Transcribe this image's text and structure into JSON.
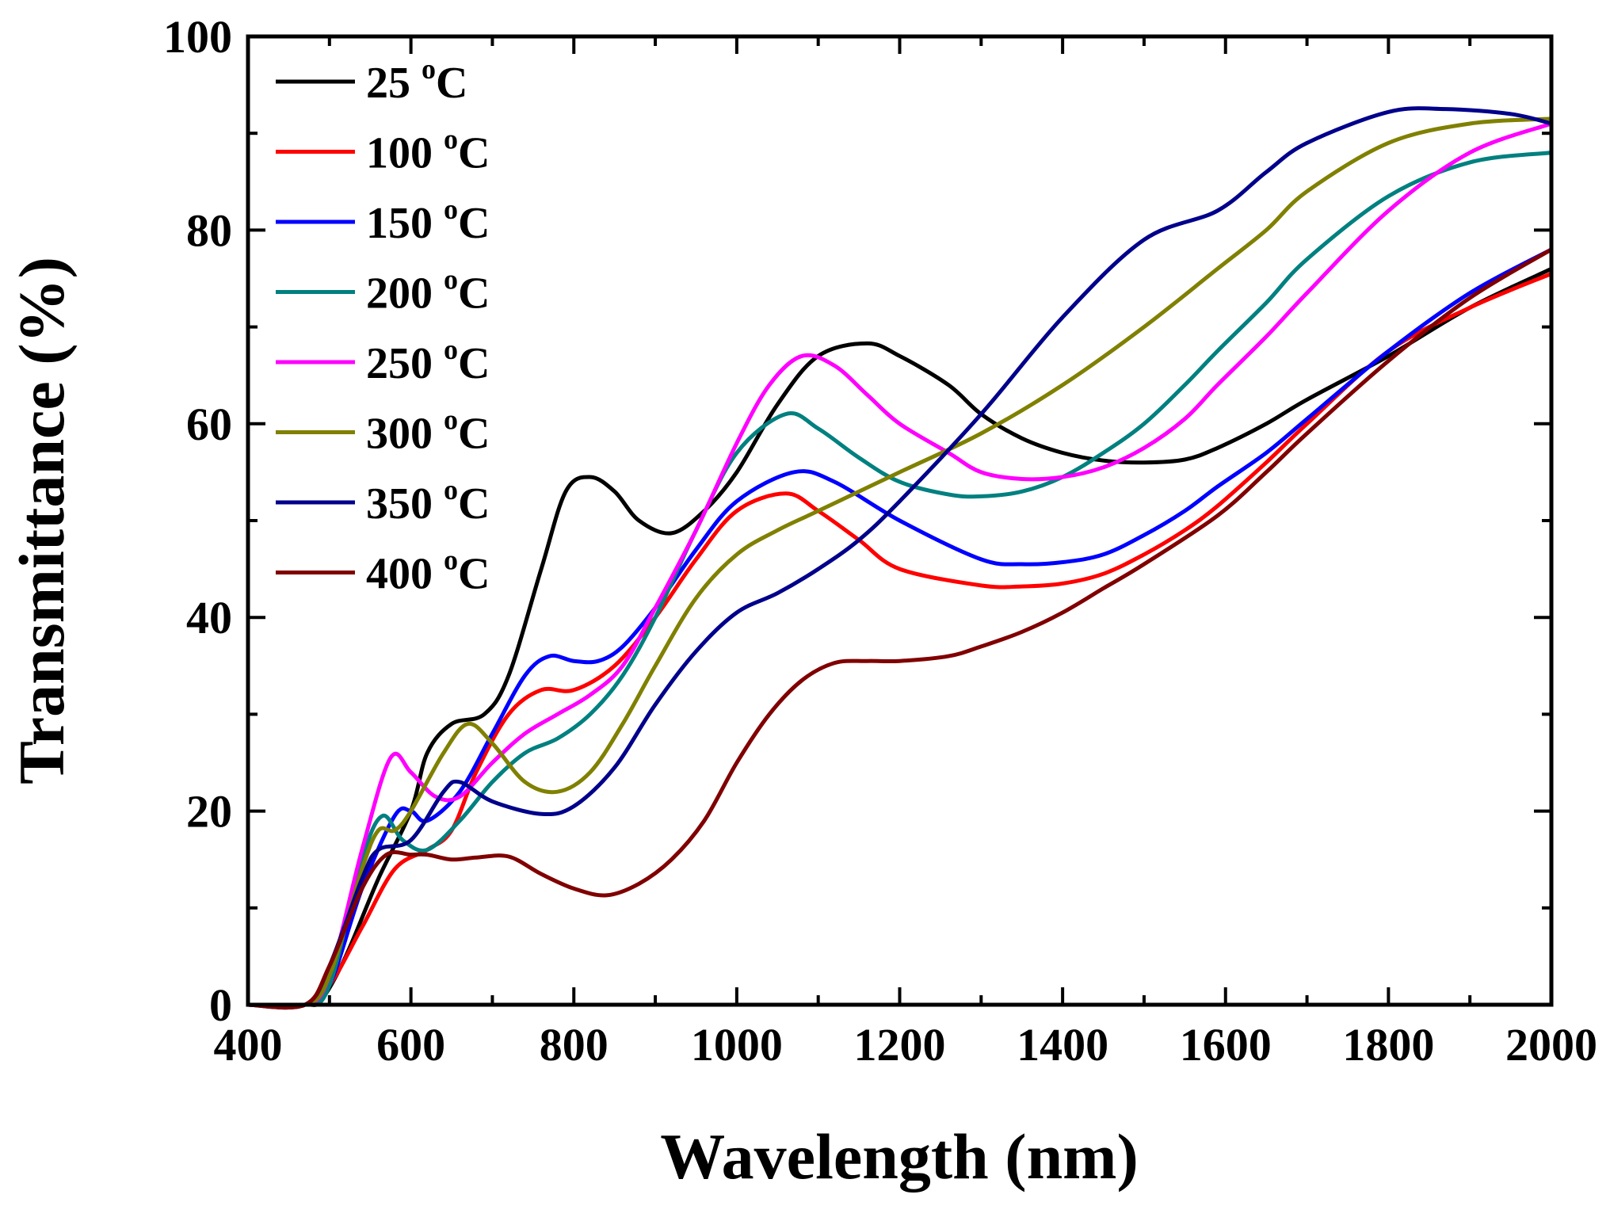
{
  "chart_data": {
    "type": "line",
    "title": "",
    "xlabel": "Wavelength (nm)",
    "ylabel": "Transmittance (%)",
    "xlim": [
      400,
      2000
    ],
    "ylim": [
      0,
      100
    ],
    "xticks": [
      "400",
      "600",
      "800",
      "1000",
      "1200",
      "1400",
      "1600",
      "1800",
      "2000"
    ],
    "yticks": [
      "0",
      "20",
      "40",
      "60",
      "80",
      "100"
    ],
    "legend_position": "top-left",
    "grid": false,
    "series": [
      {
        "name": "25",
        "unit": "C",
        "sup": "o",
        "color": "#000000",
        "x": [
          400,
          470,
          490,
          520,
          560,
          600,
          620,
          650,
          690,
          720,
          760,
          790,
          820,
          850,
          880,
          920,
          960,
          1000,
          1050,
          1100,
          1160,
          1200,
          1260,
          1300,
          1350,
          1400,
          1450,
          1500,
          1550,
          1590,
          1650,
          1700,
          1800,
          1900,
          2000
        ],
        "y": [
          0,
          0,
          0.5,
          5,
          13,
          20,
          26,
          29,
          30,
          34,
          45,
          53,
          54.5,
          53,
          50,
          48.7,
          51,
          55,
          62,
          67,
          68.3,
          67,
          64,
          61,
          58.5,
          57,
          56.2,
          56,
          56.3,
          57.5,
          60,
          62.5,
          67,
          72,
          76
        ]
      },
      {
        "name": "100",
        "unit": "C",
        "sup": "o",
        "color": "#ff0000",
        "x": [
          400,
          470,
          500,
          540,
          580,
          620,
          650,
          680,
          720,
          760,
          800,
          850,
          900,
          950,
          1000,
          1060,
          1100,
          1150,
          1200,
          1300,
          1350,
          1400,
          1450,
          1500,
          1550,
          1590,
          1650,
          1700,
          1800,
          1900,
          2000
        ],
        "y": [
          0,
          0,
          2,
          8,
          14,
          16,
          18,
          24,
          30,
          32.5,
          32.5,
          35,
          40,
          46,
          51,
          52.8,
          51,
          48,
          45,
          43.3,
          43.2,
          43.5,
          44.5,
          46.5,
          49,
          51.5,
          56,
          60,
          67.5,
          72,
          75.5
        ]
      },
      {
        "name": "150",
        "unit": "C",
        "sup": "o",
        "color": "#0000ff",
        "x": [
          400,
          470,
          500,
          540,
          580,
          600,
          620,
          660,
          700,
          740,
          770,
          800,
          830,
          860,
          900,
          950,
          1000,
          1070,
          1120,
          1200,
          1300,
          1350,
          1400,
          1450,
          1500,
          1550,
          1590,
          1650,
          1700,
          1800,
          1900,
          2000
        ],
        "y": [
          0,
          0,
          2,
          12,
          19.5,
          20,
          19,
          22,
          28,
          34,
          36,
          35.5,
          35.5,
          37,
          41,
          47,
          52,
          55,
          54,
          50,
          46,
          45.5,
          45.7,
          46.5,
          48.5,
          51,
          53.5,
          57,
          60.5,
          67.5,
          73.5,
          78
        ]
      },
      {
        "name": "200",
        "unit": "C",
        "sup": "o",
        "color": "#008080",
        "x": [
          400,
          470,
          500,
          540,
          565,
          590,
          620,
          660,
          700,
          740,
          780,
          820,
          860,
          900,
          950,
          1000,
          1060,
          1100,
          1150,
          1200,
          1260,
          1300,
          1350,
          1400,
          1450,
          1500,
          1550,
          1590,
          1650,
          1700,
          1800,
          1900,
          2000
        ],
        "y": [
          0,
          0,
          2,
          15,
          19.5,
          17,
          16,
          19,
          23,
          26,
          27.5,
          30,
          34,
          40,
          49,
          57,
          61,
          59.5,
          56.5,
          54,
          52.7,
          52.5,
          53,
          54.5,
          57,
          60,
          64,
          67.5,
          72.5,
          77,
          83.5,
          87,
          88
        ]
      },
      {
        "name": "250",
        "unit": "C",
        "sup": "o",
        "color": "#ff00ff",
        "x": [
          400,
          470,
          500,
          540,
          575,
          600,
          630,
          660,
          700,
          740,
          780,
          820,
          860,
          900,
          950,
          1000,
          1040,
          1080,
          1120,
          1160,
          1200,
          1260,
          1300,
          1350,
          1400,
          1450,
          1500,
          1550,
          1590,
          1650,
          1700,
          1800,
          1900,
          2000
        ],
        "y": [
          0,
          0,
          3,
          16,
          25.5,
          24,
          21.5,
          21.5,
          25,
          28,
          30,
          32,
          35,
          41,
          49,
          58,
          64,
          67,
          66,
          63,
          60,
          57,
          55,
          54.3,
          54.5,
          55.5,
          57.5,
          60.5,
          64,
          69,
          73.5,
          82,
          88,
          91
        ]
      },
      {
        "name": "300",
        "unit": "C",
        "sup": "o",
        "color": "#808000",
        "x": [
          400,
          470,
          500,
          540,
          560,
          580,
          600,
          640,
          670,
          700,
          740,
          780,
          820,
          860,
          900,
          950,
          1000,
          1050,
          1100,
          1200,
          1300,
          1400,
          1500,
          1590,
          1650,
          1700,
          1800,
          1900,
          2000
        ],
        "y": [
          0,
          0,
          3,
          14,
          18,
          18,
          20,
          26,
          29,
          27,
          23,
          22,
          24,
          29,
          35,
          42,
          46.5,
          49,
          51,
          55,
          59,
          64,
          70,
          76,
          80,
          84,
          89,
          91,
          91.5
        ]
      },
      {
        "name": "350",
        "unit": "C",
        "sup": "o",
        "color": "#00008b",
        "x": [
          400,
          470,
          500,
          540,
          560,
          600,
          640,
          660,
          700,
          760,
          800,
          850,
          900,
          950,
          1000,
          1050,
          1100,
          1150,
          1200,
          1300,
          1400,
          1500,
          1590,
          1650,
          1700,
          1800,
          1870,
          1950,
          2000
        ],
        "y": [
          0,
          0,
          4,
          13,
          16,
          17,
          22,
          23,
          21,
          19.7,
          20.5,
          24.5,
          31,
          36.5,
          40.5,
          42.5,
          45,
          48,
          52,
          61,
          71,
          79,
          82,
          86,
          89,
          92.2,
          92.5,
          92,
          91
        ]
      },
      {
        "name": "400",
        "unit": "C",
        "sup": "o",
        "color": "#800000",
        "x": [
          400,
          470,
          500,
          540,
          570,
          600,
          620,
          650,
          680,
          720,
          760,
          800,
          840,
          880,
          920,
          960,
          1000,
          1040,
          1080,
          1120,
          1160,
          1200,
          1260,
          1300,
          1350,
          1400,
          1450,
          1500,
          1590,
          1650,
          1700,
          1800,
          1900,
          2000
        ],
        "y": [
          0,
          0,
          4,
          12,
          15.5,
          15.5,
          15.5,
          15,
          15.2,
          15.3,
          13.5,
          12,
          11.3,
          12.5,
          15,
          19,
          25,
          30,
          33.5,
          35.3,
          35.5,
          35.5,
          36,
          37,
          38.5,
          40.5,
          43,
          45.5,
          50.5,
          55,
          59,
          66.5,
          73,
          78
        ]
      }
    ]
  }
}
